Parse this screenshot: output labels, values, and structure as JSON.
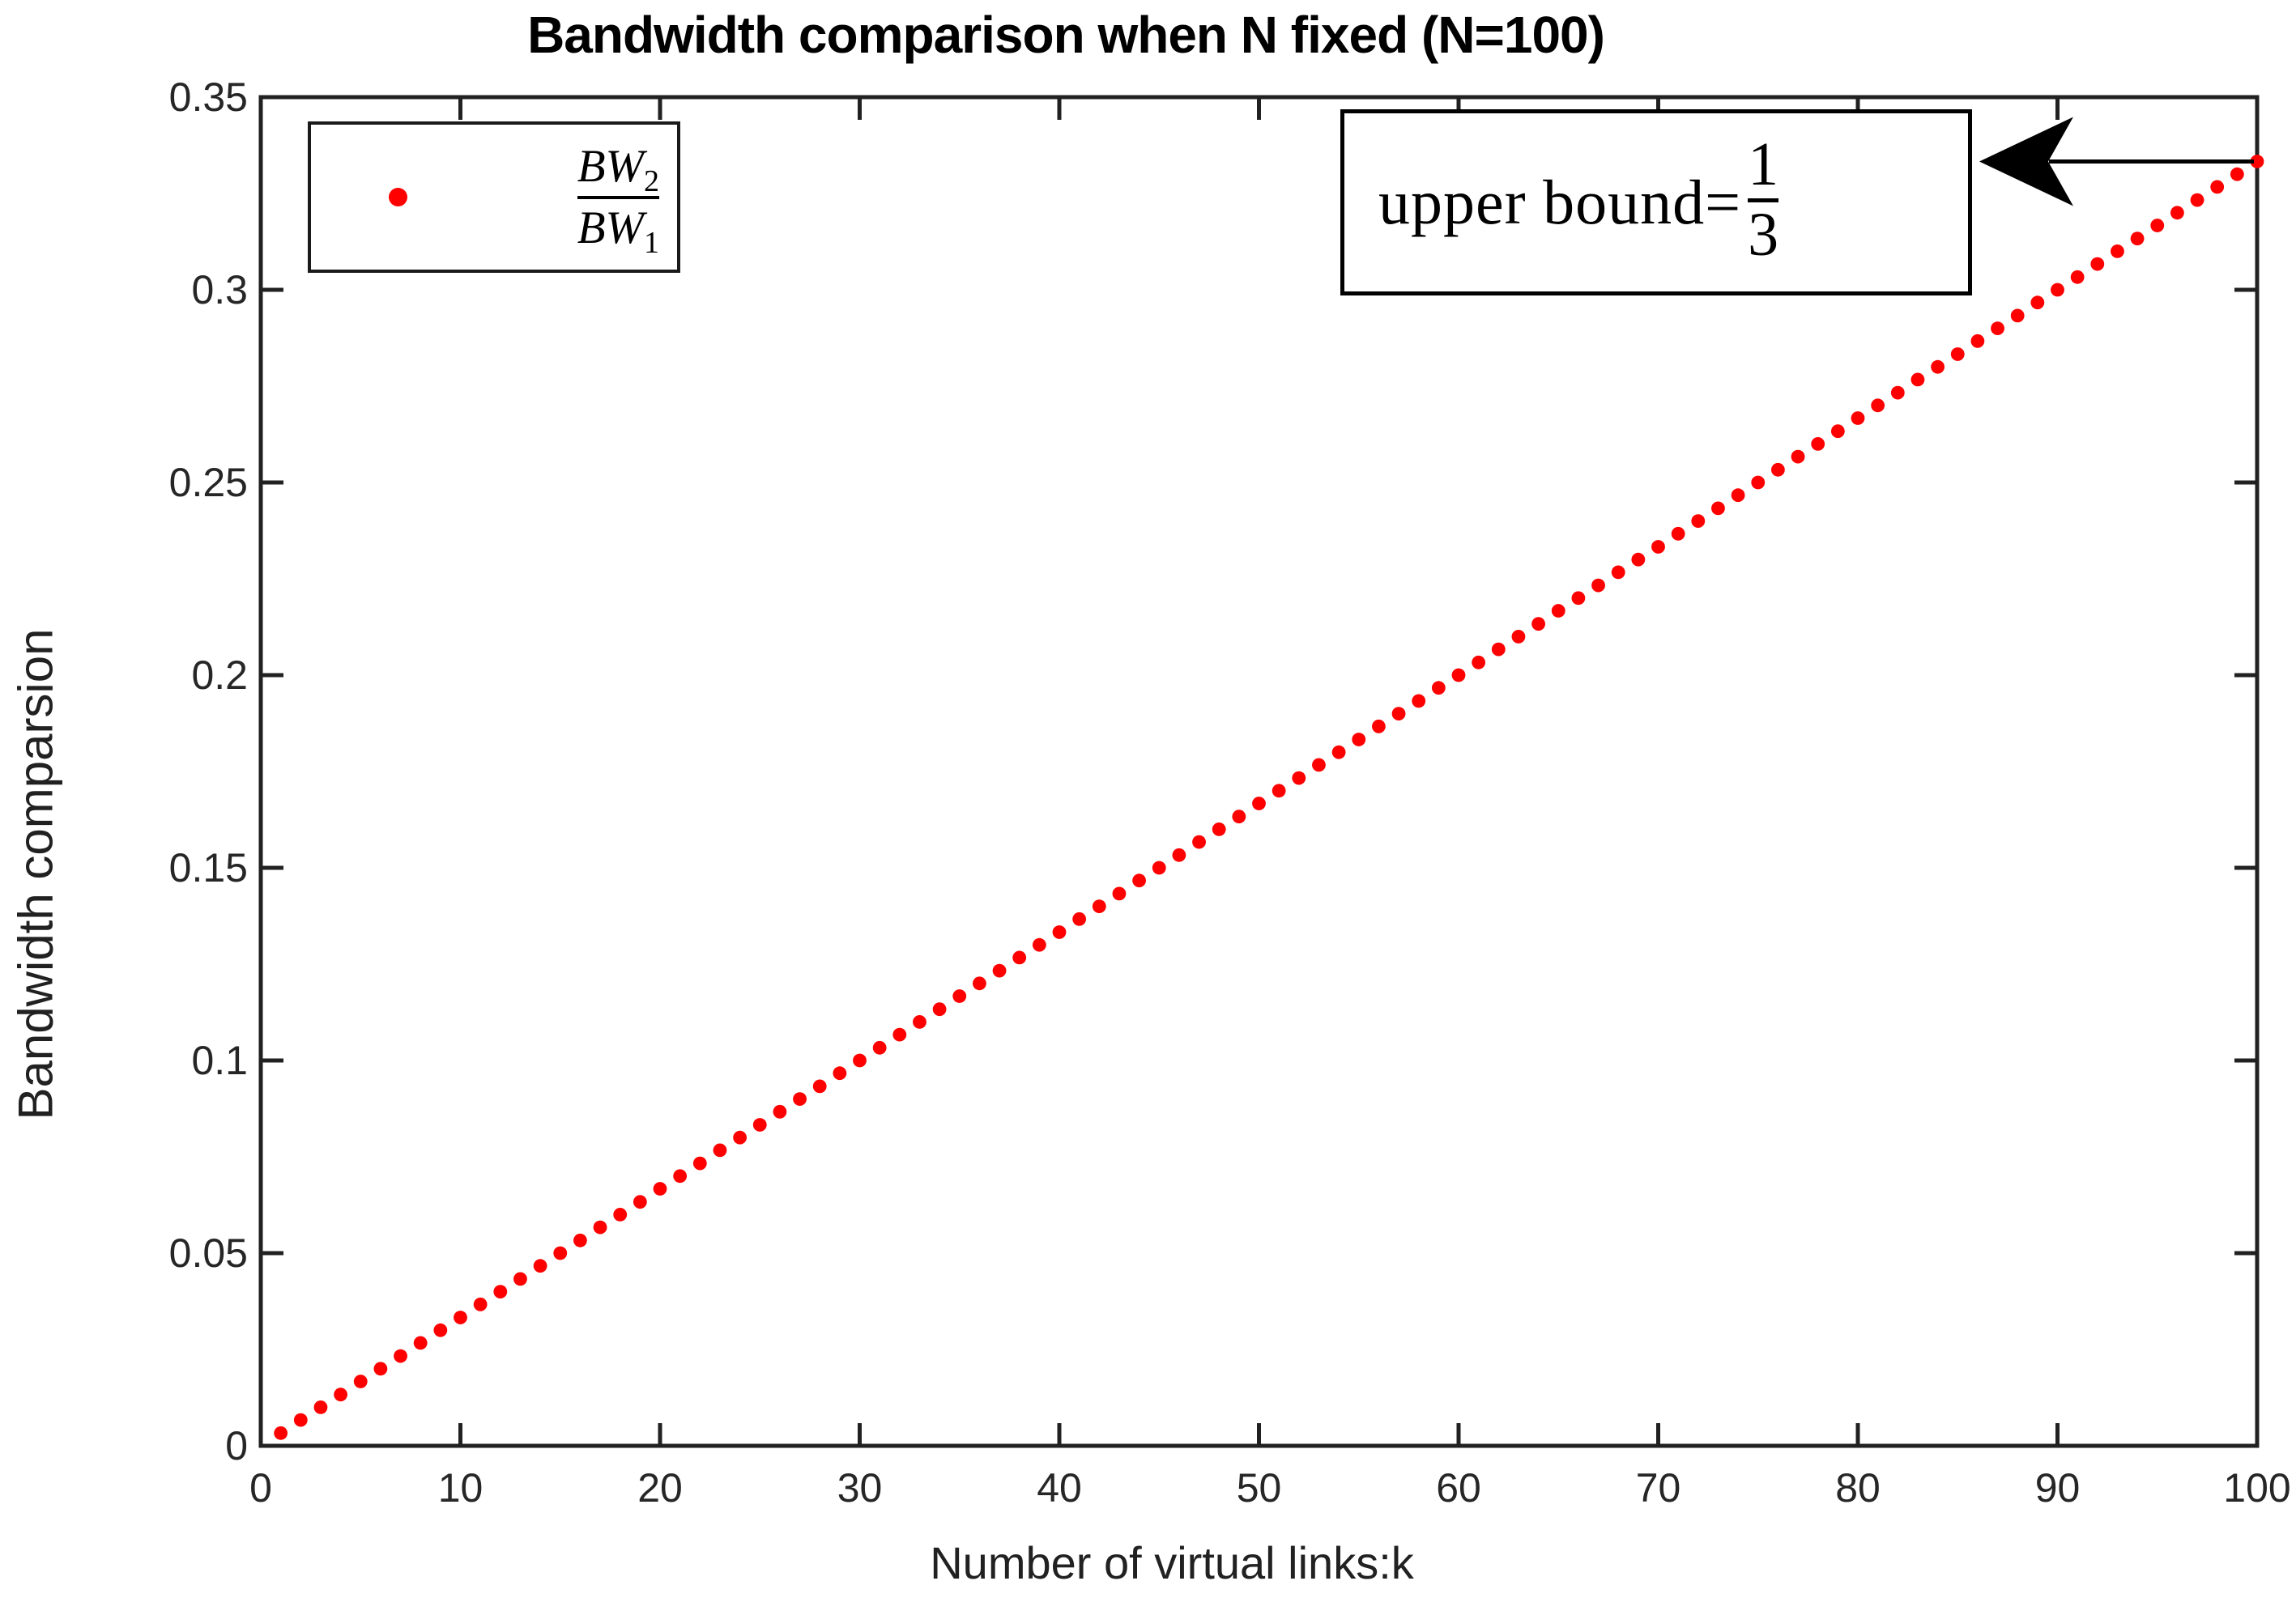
{
  "chart_data": {
    "type": "scatter",
    "title": "Bandwidth comparison when N fixed (N=100)",
    "xlabel": "Number of virtual links:k",
    "ylabel": "Bandwidth comparsion",
    "xlim": [
      0,
      100
    ],
    "ylim": [
      0,
      0.35
    ],
    "xticks": [
      0,
      10,
      20,
      30,
      40,
      50,
      60,
      70,
      80,
      90,
      100
    ],
    "xtick_labels": [
      "0",
      "10",
      "20",
      "30",
      "40",
      "50",
      "60",
      "70",
      "80",
      "90",
      "100"
    ],
    "yticks": [
      0,
      0.05,
      0.1,
      0.15,
      0.2,
      0.25,
      0.3,
      0.35
    ],
    "ytick_labels": [
      "0",
      "0.05",
      "0.1",
      "0.15",
      "0.2",
      "0.25",
      "0.3",
      "0.35"
    ],
    "grid": false,
    "legend_position": "top-left",
    "box": true,
    "tick_direction": "in",
    "series": [
      {
        "name": "BW2/BW1",
        "marker": "dot",
        "color": "#ff0000",
        "x": [
          1,
          2,
          3,
          4,
          5,
          6,
          7,
          8,
          9,
          10,
          11,
          12,
          13,
          14,
          15,
          16,
          17,
          18,
          19,
          20,
          21,
          22,
          23,
          24,
          25,
          26,
          27,
          28,
          29,
          30,
          31,
          32,
          33,
          34,
          35,
          36,
          37,
          38,
          39,
          40,
          41,
          42,
          43,
          44,
          45,
          46,
          47,
          48,
          49,
          50,
          51,
          52,
          53,
          54,
          55,
          56,
          57,
          58,
          59,
          60,
          61,
          62,
          63,
          64,
          65,
          66,
          67,
          68,
          69,
          70,
          71,
          72,
          73,
          74,
          75,
          76,
          77,
          78,
          79,
          80,
          81,
          82,
          83,
          84,
          85,
          86,
          87,
          88,
          89,
          90,
          91,
          92,
          93,
          94,
          95,
          96,
          97,
          98,
          99,
          100
        ],
        "y": [
          0.0033,
          0.0067,
          0.01,
          0.0133,
          0.0167,
          0.02,
          0.0233,
          0.0267,
          0.03,
          0.0333,
          0.0367,
          0.04,
          0.0433,
          0.0467,
          0.05,
          0.0533,
          0.0567,
          0.06,
          0.0633,
          0.0667,
          0.07,
          0.0733,
          0.0767,
          0.08,
          0.0833,
          0.0867,
          0.09,
          0.0933,
          0.0967,
          0.1,
          0.1033,
          0.1067,
          0.11,
          0.1133,
          0.1167,
          0.12,
          0.1233,
          0.1267,
          0.13,
          0.1333,
          0.1367,
          0.14,
          0.1433,
          0.1467,
          0.15,
          0.1533,
          0.1567,
          0.16,
          0.1633,
          0.1667,
          0.17,
          0.1733,
          0.1767,
          0.18,
          0.1833,
          0.1867,
          0.19,
          0.1933,
          0.1967,
          0.2,
          0.2033,
          0.2067,
          0.21,
          0.2133,
          0.2167,
          0.22,
          0.2233,
          0.2267,
          0.23,
          0.2333,
          0.2367,
          0.24,
          0.2433,
          0.2467,
          0.25,
          0.2533,
          0.2567,
          0.26,
          0.2633,
          0.2667,
          0.27,
          0.2733,
          0.2767,
          0.28,
          0.2833,
          0.2867,
          0.29,
          0.2933,
          0.2967,
          0.3,
          0.3033,
          0.3067,
          0.31,
          0.3133,
          0.3167,
          0.32,
          0.3233,
          0.3267,
          0.33,
          0.3333
        ]
      }
    ],
    "annotation": {
      "prefix": "upper bound=",
      "fraction_numerator": "1",
      "fraction_denominator": "3",
      "arrow_points_to": {
        "x": 100,
        "y": 0.3333
      }
    }
  },
  "legend": {
    "marker_color": "#ff0000",
    "label": {
      "numerator_base": "BW",
      "numerator_sub": "2",
      "denominator_base": "BW",
      "denominator_sub": "1"
    }
  },
  "colors": {
    "marker": "#ff0000",
    "axis": "#212121",
    "text": "#000000"
  }
}
